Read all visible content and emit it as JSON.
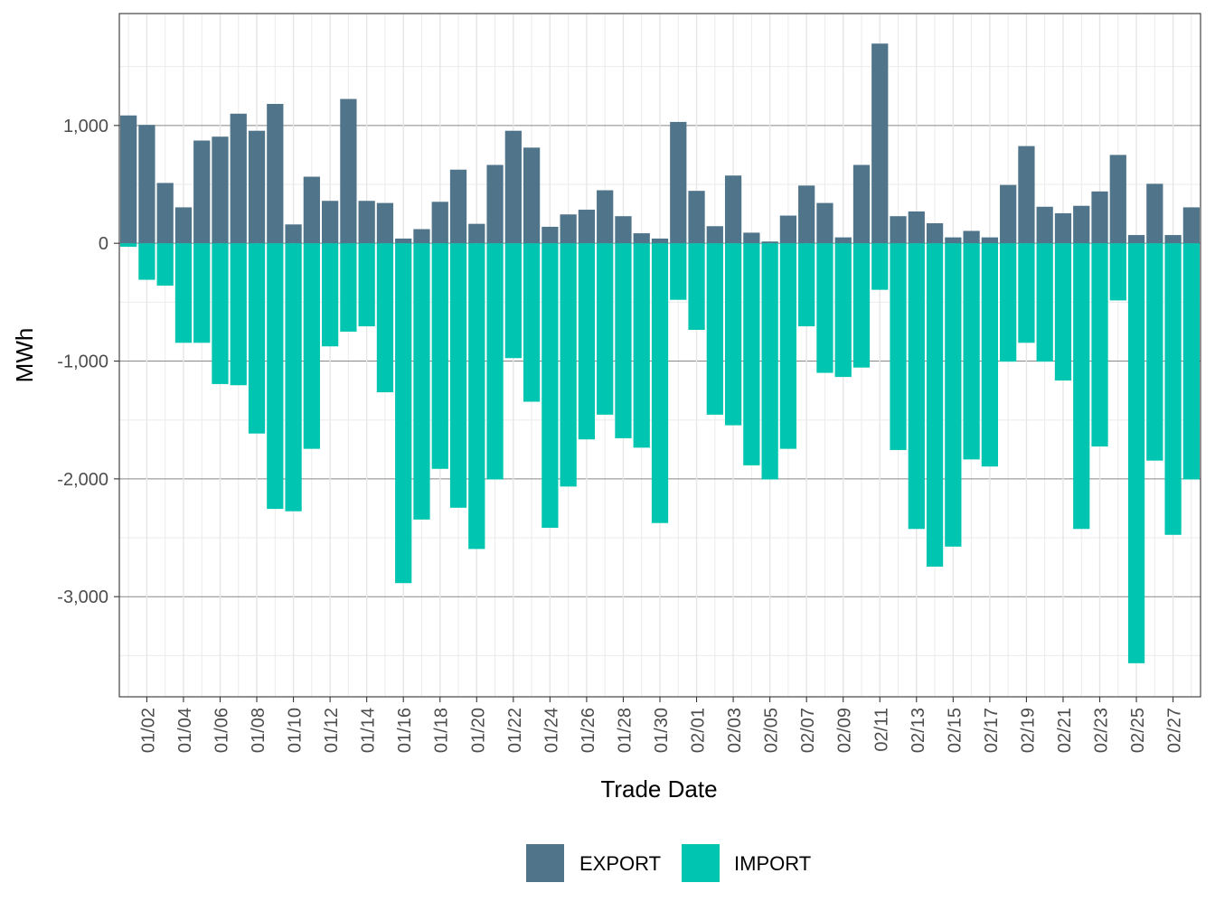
{
  "chart_data": {
    "type": "bar",
    "stacked": "diverging",
    "title": "",
    "xlabel": "Trade Date",
    "ylabel": "MWh",
    "ylim": [
      -3850,
      1950
    ],
    "yticks": [
      1000,
      0,
      -1000,
      -2000,
      -3000
    ],
    "ytick_labels": [
      "1,000",
      "0",
      "-1,000",
      "-2,000",
      "-3,000"
    ],
    "grid": true,
    "legend_position": "bottom",
    "categories": [
      "01/01",
      "01/02",
      "01/03",
      "01/04",
      "01/05",
      "01/06",
      "01/07",
      "01/08",
      "01/09",
      "01/10",
      "01/11",
      "01/12",
      "01/13",
      "01/14",
      "01/15",
      "01/16",
      "01/17",
      "01/18",
      "01/19",
      "01/20",
      "01/21",
      "01/22",
      "01/23",
      "01/24",
      "01/25",
      "01/26",
      "01/27",
      "01/28",
      "01/29",
      "01/30",
      "01/31",
      "02/01",
      "02/02",
      "02/03",
      "02/04",
      "02/05",
      "02/06",
      "02/07",
      "02/08",
      "02/09",
      "02/10",
      "02/11",
      "02/12",
      "02/13",
      "02/14",
      "02/15",
      "02/16",
      "02/17",
      "02/18",
      "02/19",
      "02/20",
      "02/21",
      "02/22",
      "02/23",
      "02/24",
      "02/25",
      "02/26",
      "02/27",
      "02/28"
    ],
    "x_tick_labels": [
      "01/02",
      "01/04",
      "01/06",
      "01/08",
      "01/10",
      "01/12",
      "01/14",
      "01/16",
      "01/18",
      "01/20",
      "01/22",
      "01/24",
      "01/26",
      "01/28",
      "01/30",
      "02/01",
      "02/03",
      "02/05",
      "02/07",
      "02/09",
      "02/11",
      "02/13",
      "02/15",
      "02/17",
      "02/19",
      "02/21",
      "02/23",
      "02/25",
      "02/27"
    ],
    "series": [
      {
        "name": "EXPORT",
        "color": "#50758a",
        "values": [
          1085,
          1005,
          512,
          305,
          872,
          905,
          1100,
          955,
          1183,
          160,
          565,
          360,
          1225,
          360,
          342,
          40,
          120,
          352,
          625,
          165,
          665,
          955,
          812,
          140,
          245,
          285,
          450,
          230,
          85,
          40,
          1030,
          445,
          145,
          575,
          90,
          15,
          235,
          490,
          342,
          50,
          665,
          1695,
          230,
          270,
          170,
          50,
          105,
          50,
          495,
          825,
          310,
          255,
          318,
          440,
          750,
          70,
          505,
          70,
          305
        ]
      },
      {
        "name": "IMPORT",
        "color": "#00c5b0",
        "values": [
          -30,
          -310,
          -360,
          -845,
          -845,
          -1195,
          -1205,
          -1615,
          -2255,
          -2275,
          -1745,
          -875,
          -750,
          -705,
          -1265,
          -2885,
          -2345,
          -1915,
          -2245,
          -2595,
          -2005,
          -975,
          -1345,
          -2415,
          -2065,
          -1665,
          -1455,
          -1655,
          -1735,
          -2375,
          -480,
          -735,
          -1455,
          -1545,
          -1885,
          -2005,
          -1745,
          -705,
          -1100,
          -1135,
          -1055,
          -395,
          -1755,
          -2425,
          -2745,
          -2575,
          -1835,
          -1895,
          -1005,
          -845,
          -1005,
          -1165,
          -2425,
          -1725,
          -485,
          -3565,
          -1845,
          -2475,
          -2005
        ]
      }
    ]
  }
}
